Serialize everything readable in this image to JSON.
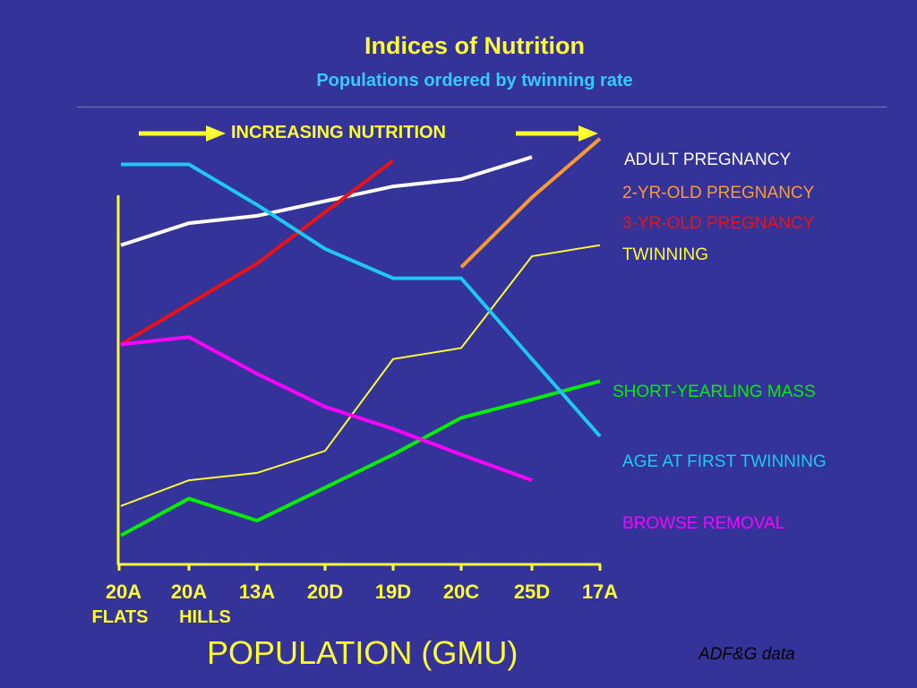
{
  "title": "Indices of Nutrition",
  "subtitle": "Populations ordered by twinning rate",
  "arrow_label": "INCREASING NUTRITION",
  "source": "ADF&G data",
  "colors": {
    "background": "#333399",
    "axis": "#ffff33",
    "title": "#ffff33",
    "subtitle": "#33ccff"
  },
  "chart_data": {
    "type": "line",
    "title": "Indices of Nutrition",
    "subtitle": "Populations ordered by twinning rate",
    "xlabel": "POPULATION (GMU)",
    "ylabel": "",
    "categories": [
      "20A",
      "20A",
      "13A",
      "20D",
      "19D",
      "20C",
      "25D",
      "17A"
    ],
    "sub_labels": [
      "FLATS",
      "HILLS",
      "",
      "",
      "",
      "",
      "",
      ""
    ],
    "ylim": [
      0,
      100
    ],
    "grid": false,
    "legend": "right-side labels",
    "series": [
      {
        "name": "ADULT PREGNANCY",
        "color": "#ffffff",
        "values": [
          83,
          89,
          91,
          95,
          99,
          101,
          107,
          null
        ]
      },
      {
        "name": "2-YR-OLD PREGNANCY",
        "color": "#ff9933",
        "values": [
          null,
          null,
          null,
          null,
          null,
          77,
          96,
          112
        ]
      },
      {
        "name": "3-YR-OLD PREGNANCY",
        "color": "#ee1111",
        "values": [
          56,
          67,
          78,
          92,
          106,
          null,
          null,
          null
        ]
      },
      {
        "name": "TWINNING",
        "color": "#ffff33",
        "values": [
          12,
          19,
          21,
          27,
          52,
          55,
          80,
          83
        ]
      },
      {
        "name": "SHORT-YEARLING MASS",
        "color": "#00ee00",
        "values": [
          4,
          14,
          8,
          17,
          26,
          36,
          41,
          46
        ]
      },
      {
        "name": "AGE AT FIRST TWINNING",
        "color": "#1ec8f5",
        "values": [
          105,
          105,
          94,
          82,
          74,
          74,
          52,
          31
        ]
      },
      {
        "name": "BROWSE REMOVAL",
        "color": "#ff00ff",
        "values": [
          56,
          58,
          48,
          39,
          33,
          26,
          19,
          null
        ]
      }
    ]
  }
}
